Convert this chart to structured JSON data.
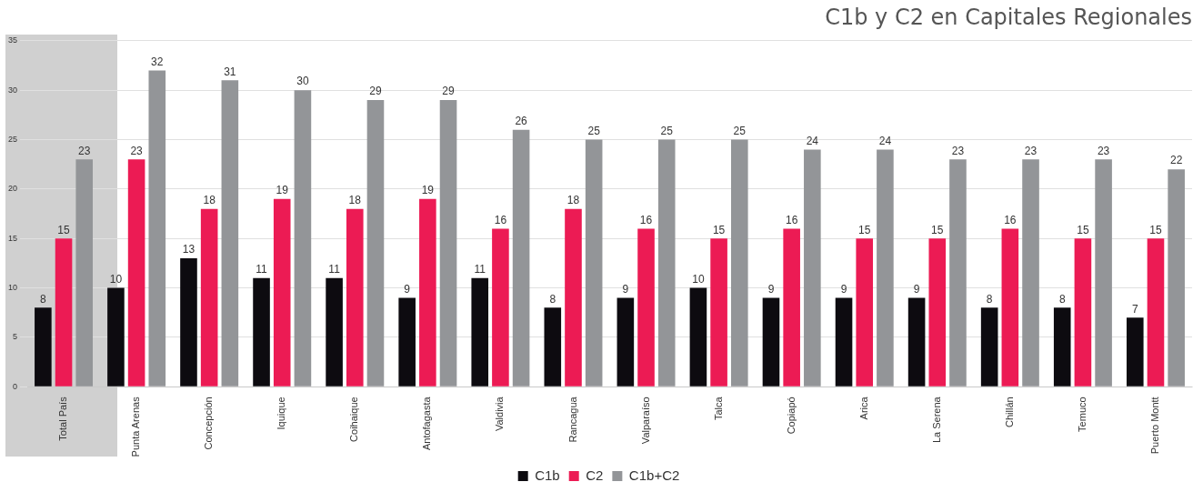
{
  "chart_data": {
    "type": "bar",
    "title": "C1b y C2 en Capitales Regionales",
    "categories": [
      "Total País",
      "Punta Arenas",
      "Concepción",
      "Iquique",
      "Coihaique",
      "Antofagasta",
      "Valdivia",
      "Rancagua",
      "Valparaíso",
      "Talca",
      "Copiapó",
      "Arica",
      "La Serena",
      "Chillán",
      "Temuco",
      "Puerto Montt"
    ],
    "series": [
      {
        "name": "C1b",
        "color": "#0d0b10",
        "values": [
          8,
          10,
          13,
          11,
          11,
          9,
          11,
          8,
          9,
          10,
          9,
          9,
          9,
          8,
          8,
          7
        ]
      },
      {
        "name": "C2",
        "color": "#ec1b54",
        "values": [
          15,
          23,
          18,
          19,
          18,
          19,
          16,
          18,
          16,
          15,
          16,
          15,
          15,
          16,
          15,
          15
        ]
      },
      {
        "name": "C1b+C2",
        "color": "#939598",
        "values": [
          23,
          32,
          31,
          30,
          29,
          29,
          26,
          25,
          25,
          25,
          24,
          24,
          23,
          23,
          23,
          22
        ]
      }
    ],
    "ylim": [
      0,
      35
    ],
    "yticks": [
      0,
      5,
      10,
      15,
      20,
      25,
      30,
      35
    ],
    "grid": "y",
    "legend": "bottom",
    "data_labels": true
  }
}
